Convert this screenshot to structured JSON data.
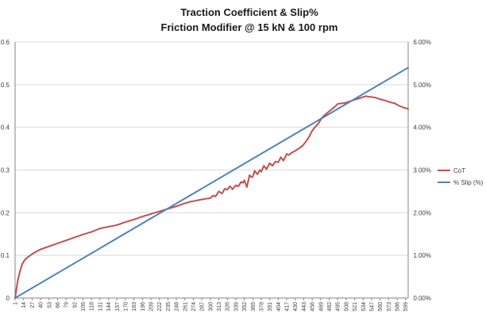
{
  "chart_data": {
    "type": "line",
    "title": "Traction Coefficient & Slip%",
    "subtitle": "Friction Modifier @ 15 kN & 100 rpm",
    "xlabel": "",
    "ylabel": "",
    "y2label": "",
    "ylim": [
      0,
      0.6
    ],
    "y2lim": [
      0,
      6
    ],
    "xlim": [
      1,
      603
    ],
    "y_ticks": [
      "0",
      "0.1",
      "0.2",
      "0.3",
      "0.4",
      "0.5",
      "0.6"
    ],
    "y2_ticks": [
      "0.00%",
      "1.00%",
      "2.00%",
      "3.00%",
      "4.00%",
      "5.00%",
      "6.00%"
    ],
    "x_ticks": [
      "1",
      "14",
      "27",
      "40",
      "53",
      "66",
      "79",
      "92",
      "105",
      "118",
      "131",
      "144",
      "157",
      "170",
      "183",
      "196",
      "209",
      "222",
      "235",
      "248",
      "261",
      "274",
      "287",
      "300",
      "313",
      "326",
      "339",
      "352",
      "365",
      "378",
      "391",
      "404",
      "417",
      "430",
      "443",
      "456",
      "469",
      "482",
      "495",
      "508",
      "521",
      "534",
      "547",
      "560",
      "573",
      "586",
      "599"
    ],
    "grid": "horizontal",
    "legend_position": "right",
    "colors": {
      "CoT": "#c0504d",
      "slip": "#4f81bd",
      "grid": "#d9d9d9",
      "axis": "#868686"
    },
    "series": [
      {
        "name": "CoT",
        "axis": "left",
        "x": [
          1,
          5,
          8,
          12,
          16,
          20,
          27,
          35,
          40,
          53,
          66,
          79,
          92,
          105,
          118,
          131,
          144,
          157,
          170,
          183,
          196,
          209,
          222,
          235,
          248,
          261,
          270,
          274,
          280,
          287,
          295,
          300,
          304,
          308,
          313,
          318,
          322,
          326,
          330,
          334,
          339,
          343,
          347,
          350,
          352,
          356,
          360,
          363,
          365,
          368,
          372,
          376,
          378,
          382,
          386,
          391,
          395,
          400,
          404,
          408,
          412,
          417,
          420,
          424,
          430,
          435,
          440,
          443,
          448,
          452,
          456,
          460,
          463,
          466,
          469,
          472,
          476,
          480,
          484,
          488,
          492,
          495,
          500,
          505,
          508,
          512,
          516,
          521,
          526,
          530,
          534,
          538,
          542,
          547,
          552,
          556,
          560,
          565,
          570,
          573,
          578,
          583,
          586,
          590,
          595,
          599,
          603
        ],
        "values": [
          0.0,
          0.04,
          0.06,
          0.08,
          0.09,
          0.095,
          0.103,
          0.11,
          0.114,
          0.121,
          0.128,
          0.135,
          0.142,
          0.149,
          0.155,
          0.163,
          0.167,
          0.171,
          0.178,
          0.184,
          0.191,
          0.197,
          0.203,
          0.209,
          0.215,
          0.222,
          0.226,
          0.227,
          0.229,
          0.231,
          0.233,
          0.234,
          0.24,
          0.238,
          0.25,
          0.245,
          0.256,
          0.254,
          0.262,
          0.255,
          0.264,
          0.262,
          0.272,
          0.27,
          0.276,
          0.26,
          0.288,
          0.283,
          0.284,
          0.298,
          0.29,
          0.3,
          0.296,
          0.31,
          0.302,
          0.316,
          0.31,
          0.32,
          0.318,
          0.33,
          0.322,
          0.338,
          0.335,
          0.34,
          0.345,
          0.35,
          0.355,
          0.36,
          0.37,
          0.38,
          0.392,
          0.4,
          0.405,
          0.41,
          0.418,
          0.424,
          0.43,
          0.435,
          0.44,
          0.445,
          0.45,
          0.455,
          0.456,
          0.457,
          0.458,
          0.46,
          0.462,
          0.465,
          0.467,
          0.469,
          0.471,
          0.473,
          0.472,
          0.471,
          0.47,
          0.468,
          0.466,
          0.464,
          0.462,
          0.46,
          0.458,
          0.456,
          0.453,
          0.45,
          0.447,
          0.445,
          0.443
        ]
      },
      {
        "name": "% Slip (%)",
        "axis": "right",
        "x": [
          1,
          603
        ],
        "values": [
          0.0,
          5.4
        ]
      }
    ]
  }
}
